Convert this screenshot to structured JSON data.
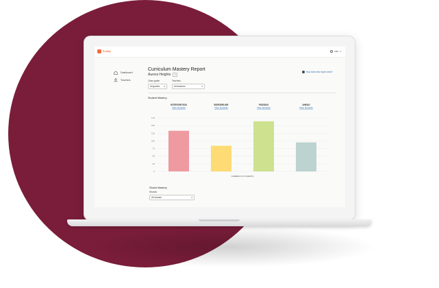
{
  "app": {
    "logo": "Frolley",
    "user": "user"
  },
  "sidebar": {
    "items": [
      {
        "label": "Dashboard",
        "icon": "home-icon"
      },
      {
        "label": "Teachers",
        "icon": "person-icon"
      }
    ]
  },
  "header": {
    "title": "Curriculum Mastery Report",
    "school": "Aurora Heights",
    "help_link": "How does this report work?"
  },
  "filters": {
    "class_grade": {
      "label": "Class grade",
      "value": "All grades"
    },
    "teachers": {
      "label": "Teachers",
      "value": "All teachers"
    }
  },
  "student_mastery": {
    "title": "Student Mastery"
  },
  "chart_data": {
    "type": "bar",
    "categories": [
      "INTERVENTION",
      "BORDERLINE",
      "PASSING",
      "AHEAD"
    ],
    "category_links": [
      "View students",
      "View students",
      "View students",
      "View students"
    ],
    "values": [
      133,
      84,
      164,
      95
    ],
    "colors": [
      "#ef9aa0",
      "#fedb74",
      "#cde18f",
      "#bcd3d0"
    ],
    "ylim": [
      0,
      175
    ],
    "yticks": [
      0,
      25,
      50,
      75,
      100,
      125,
      150,
      175
    ],
    "ytick_labels": [
      "0",
      "25",
      "50",
      "75",
      "100",
      "125",
      "150",
      "175"
    ],
    "xlabel": "NUMBER OF STUDENTS",
    "ylabel": "",
    "grid": true
  },
  "strand_mastery": {
    "title": "Strand Mastery",
    "label": "Strands",
    "value": "All strands"
  }
}
